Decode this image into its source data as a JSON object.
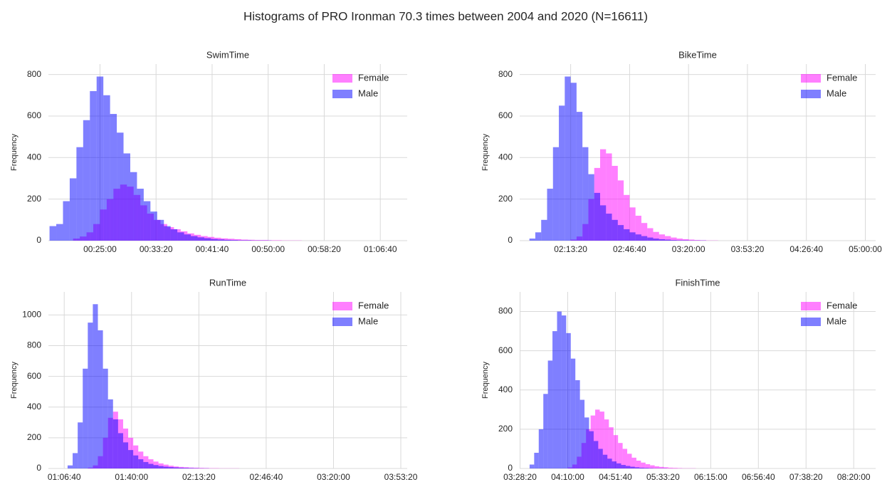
{
  "title": "Histograms of PRO Ironman 70.3 times between 2004 and 2020 (N=16611)",
  "chart_data": [
    {
      "type": "histogram",
      "title": "SwimTime",
      "ylabel": "Frequency",
      "grid": true,
      "legend": "upper right",
      "xlim": [
        1040,
        4240
      ],
      "ylim": [
        0,
        850
      ],
      "xticks": [
        {
          "value": 1500,
          "label": "00:25:00"
        },
        {
          "value": 2000,
          "label": "00:33:20"
        },
        {
          "value": 2500,
          "label": "00:41:40"
        },
        {
          "value": 3000,
          "label": "00:50:00"
        },
        {
          "value": 3500,
          "label": "00:58:20"
        },
        {
          "value": 4000,
          "label": "01:06:40"
        }
      ],
      "yticks": [
        0,
        200,
        400,
        600,
        800
      ],
      "series": [
        {
          "name": "Female",
          "color": "#ff00ff",
          "alpha": 0.5,
          "bins": [
            1260,
            1320,
            1380,
            1440,
            1500,
            1560,
            1620,
            1680,
            1740,
            1800,
            1860,
            1920,
            1980,
            2040,
            2100,
            2160,
            2220,
            2280,
            2340,
            2400,
            2460,
            2520,
            2580,
            2640,
            2700,
            2760,
            2820,
            2880,
            2940,
            3000,
            3060,
            3120,
            3180,
            3240,
            3300
          ],
          "values": [
            10,
            20,
            40,
            80,
            150,
            200,
            250,
            270,
            260,
            220,
            170,
            130,
            100,
            80,
            65,
            55,
            45,
            35,
            28,
            22,
            18,
            14,
            11,
            9,
            7,
            5,
            4,
            3,
            3,
            2,
            2,
            1,
            1,
            1
          ]
        },
        {
          "name": "Male",
          "color": "#0000ff",
          "alpha": 0.5,
          "bins": [
            1050,
            1110,
            1170,
            1230,
            1290,
            1350,
            1410,
            1470,
            1530,
            1590,
            1650,
            1710,
            1770,
            1830,
            1890,
            1950,
            2010,
            2070,
            2130,
            2190,
            2250,
            2310,
            2370,
            2430,
            2490,
            2550,
            2610,
            2670,
            2730,
            2790,
            2850,
            2910,
            2970,
            3030
          ],
          "values": [
            70,
            80,
            190,
            300,
            450,
            580,
            720,
            790,
            700,
            610,
            520,
            420,
            330,
            250,
            190,
            140,
            100,
            70,
            55,
            40,
            30,
            22,
            16,
            12,
            8,
            6,
            4,
            3,
            2,
            2,
            1,
            1,
            1
          ]
        }
      ]
    },
    {
      "type": "histogram",
      "title": "BikeTime",
      "ylabel": "Frequency",
      "grid": true,
      "legend": "upper right",
      "xlim": [
        6270,
        18350
      ],
      "ylim": [
        0,
        850
      ],
      "xticks": [
        {
          "value": 8000,
          "label": "02:13:20"
        },
        {
          "value": 10000,
          "label": "02:46:40"
        },
        {
          "value": 12000,
          "label": "03:20:00"
        },
        {
          "value": 14000,
          "label": "03:53:20"
        },
        {
          "value": 16000,
          "label": "04:26:40"
        },
        {
          "value": 18000,
          "label": "05:00:00"
        }
      ],
      "yticks": [
        0,
        200,
        400,
        600,
        800
      ],
      "series": [
        {
          "name": "Female",
          "color": "#ff00ff",
          "alpha": 0.5,
          "bins": [
            8000,
            8200,
            8400,
            8600,
            8800,
            9000,
            9200,
            9400,
            9600,
            9800,
            10000,
            10200,
            10400,
            10600,
            10800,
            11000,
            11200,
            11400,
            11600,
            11800,
            12000,
            12200,
            12400,
            12600,
            12800,
            13000
          ],
          "values": [
            5,
            20,
            80,
            200,
            350,
            440,
            420,
            360,
            290,
            220,
            160,
            120,
            85,
            60,
            42,
            30,
            22,
            15,
            10,
            7,
            5,
            3,
            2,
            1,
            1
          ]
        },
        {
          "name": "Male",
          "color": "#0000ff",
          "alpha": 0.5,
          "bins": [
            6600,
            6800,
            7000,
            7200,
            7400,
            7600,
            7800,
            8000,
            8200,
            8400,
            8600,
            8800,
            9000,
            9200,
            9400,
            9600,
            9800,
            10000,
            10200,
            10400,
            10600,
            10800,
            11000,
            11200,
            11400,
            11600,
            11800,
            12000,
            12200,
            12400,
            12600
          ],
          "values": [
            10,
            40,
            100,
            250,
            450,
            650,
            790,
            760,
            620,
            450,
            320,
            230,
            170,
            130,
            100,
            75,
            55,
            40,
            30,
            22,
            15,
            10,
            7,
            5,
            3,
            2,
            2,
            1,
            1,
            1
          ]
        }
      ]
    },
    {
      "type": "histogram",
      "title": "RunTime",
      "ylabel": "Frequency",
      "grid": true,
      "legend": "upper right",
      "xlim": [
        3530,
        14190
      ],
      "ylim": [
        0,
        1150
      ],
      "xticks": [
        {
          "value": 4000,
          "label": "01:06:40"
        },
        {
          "value": 6000,
          "label": "01:40:00"
        },
        {
          "value": 8000,
          "label": "02:13:20"
        },
        {
          "value": 10000,
          "label": "02:46:40"
        },
        {
          "value": 12000,
          "label": "03:20:00"
        },
        {
          "value": 14000,
          "label": "03:53:20"
        }
      ],
      "yticks": [
        0,
        200,
        400,
        600,
        800,
        1000
      ],
      "series": [
        {
          "name": "Female",
          "color": "#ff00ff",
          "alpha": 0.5,
          "bins": [
            4700,
            4850,
            5000,
            5150,
            5300,
            5450,
            5600,
            5750,
            5900,
            6050,
            6200,
            6350,
            6500,
            6650,
            6800,
            6950,
            7100,
            7250,
            7400,
            7550,
            7700,
            7850,
            8000,
            8150,
            8300,
            8450,
            8600,
            8750,
            8900,
            9050,
            9200
          ],
          "values": [
            5,
            20,
            80,
            200,
            330,
            370,
            320,
            260,
            200,
            150,
            110,
            80,
            60,
            45,
            33,
            25,
            18,
            13,
            10,
            8,
            6,
            5,
            4,
            3,
            2,
            2,
            1,
            1,
            1,
            1
          ]
        },
        {
          "name": "Male",
          "color": "#0000ff",
          "alpha": 0.5,
          "bins": [
            4100,
            4250,
            4400,
            4550,
            4700,
            4850,
            5000,
            5150,
            5300,
            5450,
            5600,
            5750,
            5900,
            6050,
            6200,
            6350,
            6500,
            6650,
            6800,
            6950,
            7100,
            7250,
            7400,
            7550,
            7700,
            7850,
            8000,
            8150,
            8300
          ],
          "values": [
            20,
            100,
            300,
            650,
            950,
            1070,
            900,
            650,
            450,
            320,
            230,
            170,
            120,
            85,
            60,
            42,
            30,
            22,
            16,
            12,
            9,
            7,
            5,
            4,
            3,
            2,
            1,
            1
          ]
        }
      ]
    },
    {
      "type": "histogram",
      "title": "FinishTime",
      "ylabel": "Frequency",
      "grid": true,
      "legend": "upper right",
      "xlim": [
        12480,
        31150
      ],
      "ylim": [
        0,
        900
      ],
      "xticks": [
        {
          "value": 12500,
          "label": "03:28:20"
        },
        {
          "value": 15000,
          "label": "04:10:00"
        },
        {
          "value": 17500,
          "label": "04:51:40"
        },
        {
          "value": 20000,
          "label": "05:33:20"
        },
        {
          "value": 22500,
          "label": "06:15:00"
        },
        {
          "value": 25000,
          "label": "06:56:40"
        },
        {
          "value": 27500,
          "label": "07:38:20"
        },
        {
          "value": 30000,
          "label": "08:20:00"
        }
      ],
      "yticks": [
        0,
        200,
        400,
        600,
        800
      ],
      "series": [
        {
          "name": "Female",
          "color": "#ff00ff",
          "alpha": 0.5,
          "bins": [
            15000,
            15240,
            15480,
            15720,
            15960,
            16200,
            16440,
            16680,
            16920,
            17160,
            17400,
            17640,
            17880,
            18120,
            18360,
            18600,
            18840,
            19080,
            19320,
            19560,
            19800,
            20040,
            20280,
            20520,
            20760,
            21000,
            21240,
            21480,
            21720
          ],
          "values": [
            5,
            20,
            60,
            130,
            200,
            270,
            300,
            290,
            250,
            210,
            170,
            130,
            100,
            75,
            55,
            40,
            30,
            22,
            16,
            11,
            8,
            6,
            4,
            3,
            2,
            1,
            1,
            1
          ]
        },
        {
          "name": "Male",
          "color": "#0000ff",
          "alpha": 0.5,
          "bins": [
            13000,
            13240,
            13480,
            13720,
            13960,
            14200,
            14440,
            14680,
            14920,
            15160,
            15400,
            15640,
            15880,
            16120,
            16360,
            16600,
            16840,
            17080,
            17320,
            17560,
            17800,
            18040,
            18280,
            18520,
            18760,
            19000,
            19240,
            19480,
            19720,
            19960,
            20200
          ],
          "values": [
            20,
            80,
            200,
            380,
            550,
            700,
            800,
            780,
            690,
            560,
            450,
            350,
            260,
            190,
            140,
            100,
            70,
            50,
            36,
            26,
            18,
            13,
            9,
            6,
            4,
            3,
            2,
            1,
            1,
            1
          ]
        }
      ]
    }
  ]
}
